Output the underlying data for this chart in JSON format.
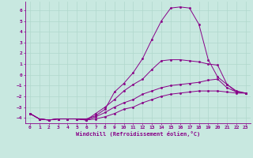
{
  "background_color": "#c8e8e0",
  "grid_color": "#b0d8cc",
  "line_color": "#880088",
  "marker": ".",
  "marker_size": 3,
  "x_label": "Windchill (Refroidissement éolien,°C)",
  "ylim": [
    -4.5,
    6.8
  ],
  "xlim": [
    -0.5,
    23.5
  ],
  "yticks": [
    -4,
    -3,
    -2,
    -1,
    0,
    1,
    2,
    3,
    4,
    5,
    6
  ],
  "xticks": [
    0,
    1,
    2,
    3,
    4,
    5,
    6,
    7,
    8,
    9,
    10,
    11,
    12,
    13,
    14,
    15,
    16,
    17,
    18,
    19,
    20,
    21,
    22,
    23
  ],
  "series": [
    {
      "x": [
        0,
        1,
        2,
        3,
        4,
        5,
        6,
        7,
        8,
        9,
        10,
        11,
        12,
        13,
        14,
        15,
        16,
        17,
        18,
        19,
        20,
        21,
        22,
        23
      ],
      "y": [
        -3.6,
        -4.1,
        -4.2,
        -4.1,
        -4.1,
        -4.1,
        -4.2,
        -4.1,
        -3.9,
        -3.6,
        -3.2,
        -3.0,
        -2.6,
        -2.3,
        -2.0,
        -1.8,
        -1.7,
        -1.6,
        -1.5,
        -1.5,
        -1.5,
        -1.6,
        -1.7,
        -1.7
      ]
    },
    {
      "x": [
        0,
        1,
        2,
        3,
        4,
        5,
        6,
        7,
        8,
        9,
        10,
        11,
        12,
        13,
        14,
        15,
        16,
        17,
        18,
        19,
        20,
        21,
        22,
        23
      ],
      "y": [
        -3.6,
        -4.1,
        -4.2,
        -4.1,
        -4.1,
        -4.1,
        -4.2,
        -3.9,
        -3.5,
        -3.0,
        -2.6,
        -2.3,
        -1.8,
        -1.5,
        -1.2,
        -1.0,
        -0.9,
        -0.8,
        -0.7,
        -0.5,
        -0.4,
        -1.2,
        -1.6,
        -1.7
      ]
    },
    {
      "x": [
        0,
        1,
        2,
        3,
        4,
        5,
        6,
        7,
        8,
        9,
        10,
        11,
        12,
        13,
        14,
        15,
        16,
        17,
        18,
        19,
        20,
        21,
        22,
        23
      ],
      "y": [
        -3.6,
        -4.1,
        -4.2,
        -4.1,
        -4.1,
        -4.1,
        -4.2,
        -3.6,
        -3.0,
        -2.3,
        -1.5,
        -0.9,
        -0.4,
        0.5,
        1.3,
        1.4,
        1.4,
        1.3,
        1.2,
        1.0,
        0.9,
        -0.9,
        -1.5,
        -1.7
      ]
    },
    {
      "x": [
        0,
        1,
        2,
        3,
        4,
        5,
        6,
        7,
        8,
        9,
        10,
        11,
        12,
        13,
        14,
        15,
        16,
        17,
        18,
        19,
        20,
        21,
        22,
        23
      ],
      "y": [
        -3.6,
        -4.1,
        -4.2,
        -4.1,
        -4.1,
        -4.1,
        -4.1,
        -3.8,
        -3.2,
        -1.6,
        -0.8,
        0.2,
        1.5,
        3.3,
        5.0,
        6.2,
        6.3,
        6.2,
        4.7,
        1.4,
        -0.2,
        -0.9,
        -1.6,
        -1.7
      ]
    }
  ]
}
